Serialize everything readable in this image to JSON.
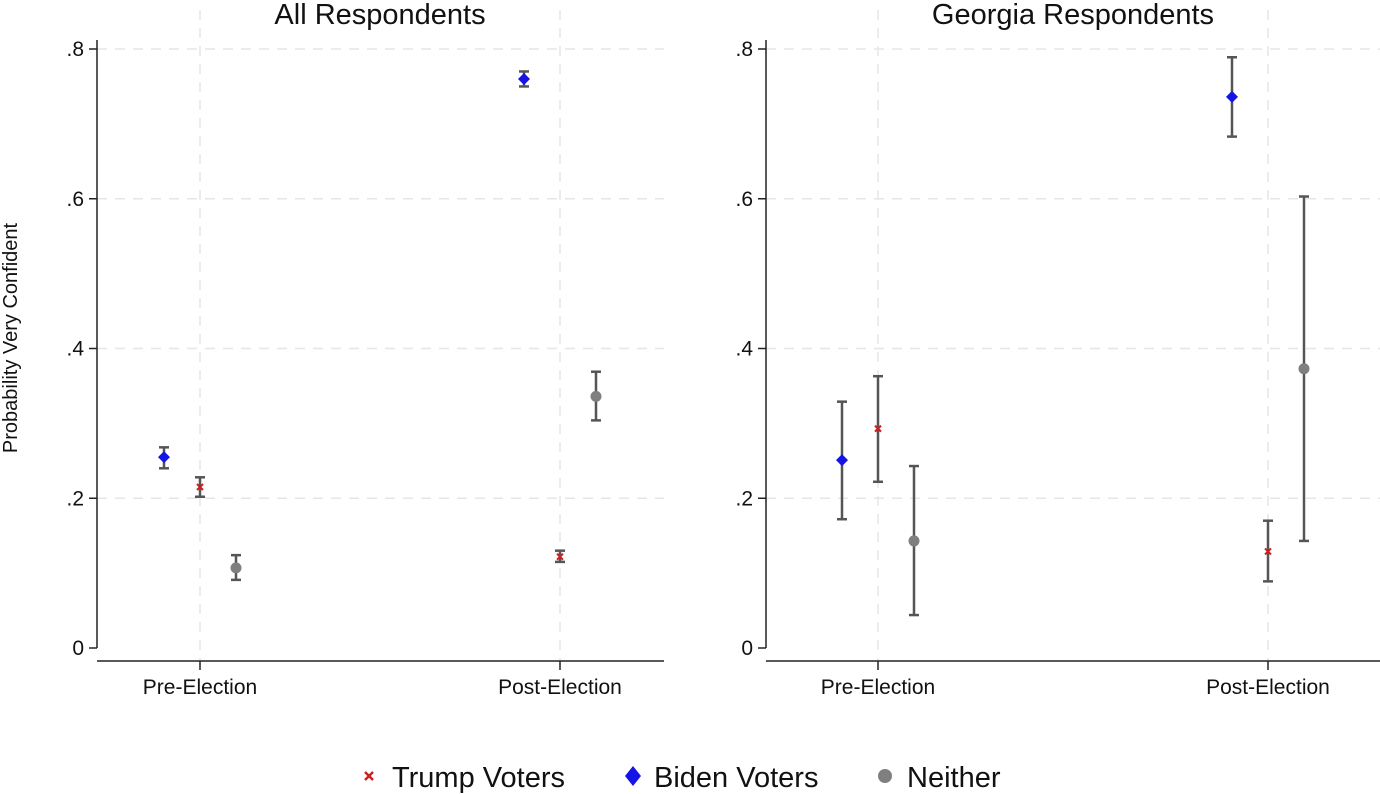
{
  "chart_data": {
    "type": "scatter",
    "ylabel": "Probability Very Confident",
    "y_ticks": [
      {
        "value": 0,
        "label": "0"
      },
      {
        "value": 0.2,
        "label": ".2"
      },
      {
        "value": 0.4,
        "label": ".4"
      },
      {
        "value": 0.6,
        "label": ".6"
      },
      {
        "value": 0.8,
        "label": ".8"
      }
    ],
    "ylim": [
      -0.0167,
      0.82
    ],
    "grid": true,
    "legend_position": "bottom",
    "legend": [
      {
        "name": "Trump Voters",
        "marker": "x",
        "color": "#cc1f1f"
      },
      {
        "name": "Biden Voters",
        "marker": "diamond",
        "color": "#1414e6"
      },
      {
        "name": "Neither",
        "marker": "circle",
        "color": "#7f7f7f"
      }
    ],
    "panels": [
      {
        "title": "All Respondents",
        "categories": [
          "Pre-Election",
          "Post-Election"
        ],
        "series": [
          {
            "name": "Biden Voters",
            "offset": -0.1,
            "values": [
              0.255,
              0.76
            ],
            "ci_low": [
              0.24,
              0.75
            ],
            "ci_high": [
              0.268,
              0.77
            ]
          },
          {
            "name": "Trump Voters",
            "offset": 0,
            "values": [
              0.215,
              0.122
            ],
            "ci_low": [
              0.202,
              0.115
            ],
            "ci_high": [
              0.228,
              0.13
            ]
          },
          {
            "name": "Neither",
            "offset": 0.1,
            "values": [
              0.107,
              0.336
            ],
            "ci_low": [
              0.091,
              0.304
            ],
            "ci_high": [
              0.124,
              0.369
            ]
          }
        ]
      },
      {
        "title": "Georgia Respondents",
        "categories": [
          "Pre-Election",
          "Post-Election"
        ],
        "series": [
          {
            "name": "Biden Voters",
            "offset": -0.1,
            "values": [
              0.251,
              0.736
            ],
            "ci_low": [
              0.172,
              0.683
            ],
            "ci_high": [
              0.329,
              0.789
            ]
          },
          {
            "name": "Trump Voters",
            "offset": 0,
            "values": [
              0.293,
              0.129
            ],
            "ci_low": [
              0.222,
              0.089
            ],
            "ci_high": [
              0.363,
              0.17
            ]
          },
          {
            "name": "Neither",
            "offset": 0.1,
            "values": [
              0.143,
              0.373
            ],
            "ci_low": [
              0.044,
              0.143
            ],
            "ci_high": [
              0.243,
              0.603
            ]
          }
        ]
      }
    ]
  }
}
